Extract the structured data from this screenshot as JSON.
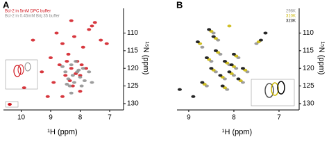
{
  "chart_data": [
    {
      "type": "scatter",
      "panel": "A",
      "xlabel": "¹H (ppm)",
      "ylabel": "¹⁵N (ppm)",
      "xlim": [
        10.6,
        6.6
      ],
      "ylim": [
        103,
        131.2
      ],
      "xticks": [
        10,
        9,
        8,
        7
      ],
      "yticks": [
        110,
        115,
        120,
        125,
        130
      ],
      "legend": "top-left",
      "series": [
        {
          "name": "Bcl-2 in 5mM DPC buffer",
          "color": "#d0141c",
          "x": [
            9.9,
            9.6,
            9.3,
            9.0,
            8.9,
            8.8,
            8.7,
            8.6,
            8.5,
            8.4,
            8.3,
            8.25,
            8.2,
            8.1,
            8.0,
            7.9,
            7.8,
            7.7,
            7.6,
            7.5,
            7.3,
            7.1,
            8.3,
            8.6,
            8.0,
            8.45,
            8.15,
            7.95,
            8.35,
            9.1
          ],
          "y": [
            125.5,
            112,
            121,
            117,
            124,
            110,
            119,
            113,
            122,
            116,
            120,
            125,
            111,
            118,
            122,
            114,
            120,
            109,
            108,
            107,
            112,
            113,
            106.5,
            128,
            126.5,
            118,
            121.5,
            119,
            123.5,
            128
          ]
        },
        {
          "name": "Bcl-2 in 0.45mM Brij 35 buffer",
          "color": "#8c8c8c",
          "x": [
            8.5,
            8.4,
            8.3,
            8.2,
            8.1,
            8.0,
            7.9,
            8.35,
            8.25,
            7.85,
            8.6,
            8.15,
            8.45,
            8.05,
            7.95,
            8.3,
            7.7,
            7.6
          ],
          "y": [
            121,
            123,
            119,
            124,
            121,
            122.5,
            120,
            125,
            122,
            123.5,
            119.5,
            118,
            124.5,
            120.5,
            125,
            127,
            121,
            124
          ]
        }
      ]
    },
    {
      "type": "scatter",
      "panel": "B",
      "xlabel": "¹H (ppm)",
      "ylabel": "¹⁵N (ppm)",
      "xlim": [
        9.26,
        6.6
      ],
      "ylim": [
        103,
        131.2
      ],
      "xticks": [
        9,
        8,
        7
      ],
      "yticks": [
        110,
        115,
        120,
        125,
        130
      ],
      "legend": "top-right",
      "series": [
        {
          "name": "298K",
          "color": "#8c8c8c",
          "x": [
            8.7,
            8.5,
            8.4,
            8.3,
            8.2,
            8.1,
            8.0,
            7.9,
            7.8,
            8.6,
            8.35,
            8.15,
            7.95,
            8.45,
            7.7,
            7.5
          ],
          "y": [
            114,
            118,
            121,
            116,
            123,
            119,
            122,
            117,
            124,
            125,
            112,
            126,
            120,
            110,
            121,
            113
          ]
        },
        {
          "name": "310K",
          "color": "#c8b400",
          "x": [
            8.75,
            8.55,
            8.45,
            8.35,
            8.25,
            8.15,
            8.05,
            7.95,
            7.85,
            8.65,
            8.4,
            8.2,
            8.0,
            8.5,
            7.75,
            7.45,
            8.1
          ],
          "y": [
            113,
            117.5,
            120.5,
            115.5,
            122.5,
            118.5,
            121.5,
            116.5,
            123.5,
            124.5,
            111.5,
            125.5,
            119.5,
            109.5,
            120.5,
            112.5,
            108
          ]
        },
        {
          "name": "323K",
          "color": "#000000",
          "x": [
            8.8,
            8.6,
            8.5,
            8.4,
            8.3,
            8.2,
            8.1,
            8.0,
            7.9,
            8.7,
            8.45,
            8.25,
            8.05,
            8.55,
            7.8,
            7.4,
            9.2,
            8.9,
            7.3
          ],
          "y": [
            112.5,
            117,
            120,
            115,
            122,
            118,
            121,
            116,
            123,
            124,
            111,
            125,
            119,
            109,
            120,
            112,
            126,
            128,
            110
          ]
        }
      ]
    }
  ]
}
